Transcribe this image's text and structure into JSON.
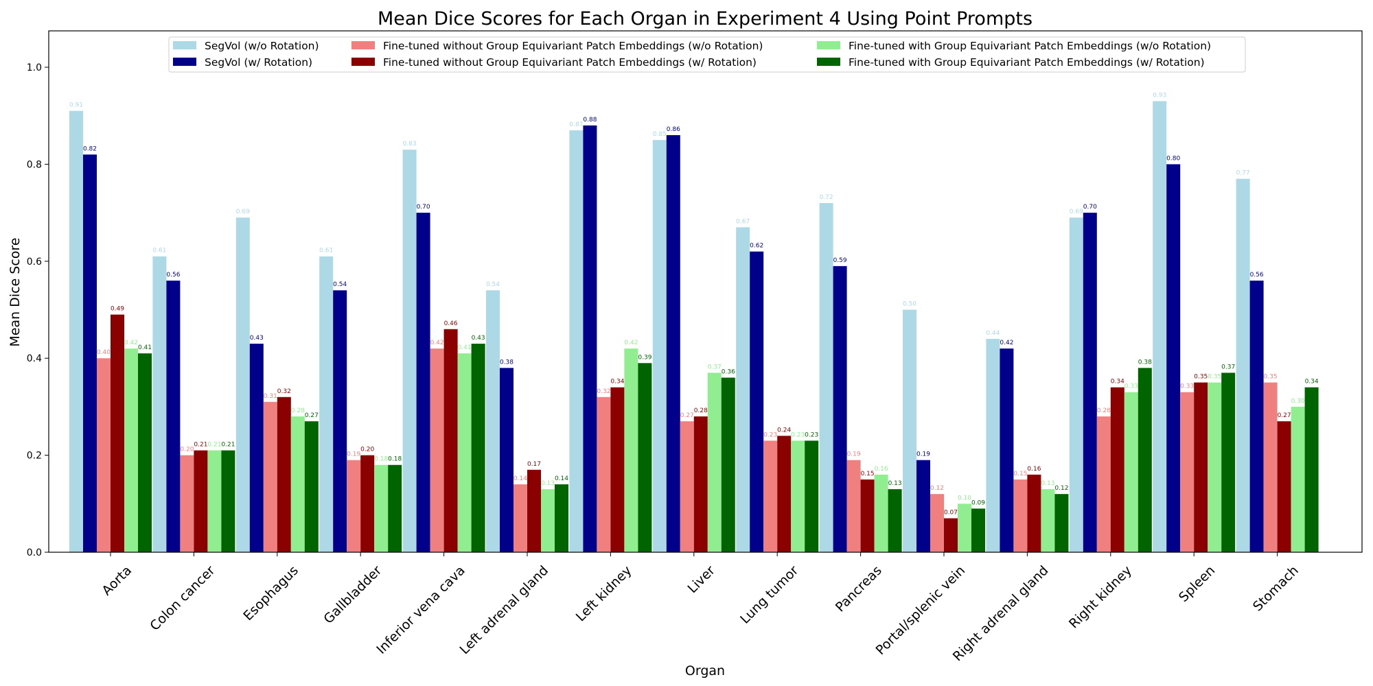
{
  "chart_data": {
    "type": "bar",
    "title": "Mean Dice Scores for Each Organ in Experiment 4 Using Point Prompts",
    "xlabel": "Organ",
    "ylabel": "Mean Dice Score",
    "ylim": [
      0,
      1.075
    ],
    "yticks": [
      0.0,
      0.2,
      0.4,
      0.6,
      0.8,
      1.0
    ],
    "ytick_labels": [
      "0.0",
      "0.2",
      "0.4",
      "0.6",
      "0.8",
      "1.0"
    ],
    "grid": false,
    "legend_position": "top-center",
    "categories": [
      "Aorta",
      "Colon cancer",
      "Esophagus",
      "Gallbladder",
      "Inferior vena cava",
      "Left adrenal gland",
      "Left kidney",
      "Liver",
      "Lung tumor",
      "Pancreas",
      "Portal/splenic vein",
      "Right adrenal gland",
      "Right kidney",
      "Spleen",
      "Stomach"
    ],
    "series": [
      {
        "name": "SegVol (w/o Rotation)",
        "color": "#add8e6",
        "values": [
          0.91,
          0.61,
          0.69,
          0.61,
          0.83,
          0.54,
          0.87,
          0.85,
          0.67,
          0.72,
          0.5,
          0.44,
          0.69,
          0.93,
          0.77
        ],
        "labels": [
          "0.91",
          "0.61",
          "0.69",
          "0.61",
          "0.83",
          "0.54",
          "0.87",
          "0.85",
          "0.67",
          "0.72",
          "0.50",
          "0.44",
          "0.69",
          "0.93",
          "0.77"
        ]
      },
      {
        "name": "SegVol (w/ Rotation)",
        "color": "#00008b",
        "values": [
          0.82,
          0.56,
          0.43,
          0.54,
          0.7,
          0.38,
          0.88,
          0.86,
          0.62,
          0.59,
          0.19,
          0.42,
          0.7,
          0.8,
          0.56
        ],
        "labels": [
          "0.82",
          "0.56",
          "0.43",
          "0.54",
          "0.70",
          "0.38",
          "0.88",
          "0.86",
          "0.62",
          "0.59",
          "0.19",
          "0.42",
          "0.70",
          "0.80",
          "0.56"
        ]
      },
      {
        "name": "Fine-tuned without Group Equivariant Patch Embeddings (w/o Rotation)",
        "color": "#f08080",
        "values": [
          0.4,
          0.2,
          0.31,
          0.19,
          0.42,
          0.14,
          0.32,
          0.27,
          0.23,
          0.19,
          0.12,
          0.15,
          0.28,
          0.33,
          0.35
        ],
        "labels": [
          "0.40",
          "0.20",
          "0.31",
          "0.19",
          "0.42",
          "0.14",
          "0.32",
          "0.27",
          "0.23",
          "0.19",
          "0.12",
          "0.15",
          "0.28",
          "0.33",
          "0.35"
        ]
      },
      {
        "name": "Fine-tuned without Group Equivariant Patch Embeddings (w/ Rotation)",
        "color": "#8b0000",
        "values": [
          0.49,
          0.21,
          0.32,
          0.2,
          0.46,
          0.17,
          0.34,
          0.28,
          0.24,
          0.15,
          0.07,
          0.16,
          0.34,
          0.35,
          0.27
        ],
        "labels": [
          "0.49",
          "0.21",
          "0.32",
          "0.20",
          "0.46",
          "0.17",
          "0.34",
          "0.28",
          "0.24",
          "0.15",
          "0.07",
          "0.16",
          "0.34",
          "0.35",
          "0.27"
        ]
      },
      {
        "name": "Fine-tuned with Group Equivariant Patch Embeddings (w/o Rotation)",
        "color": "#90ee90",
        "values": [
          0.42,
          0.21,
          0.28,
          0.18,
          0.41,
          0.13,
          0.42,
          0.37,
          0.23,
          0.16,
          0.1,
          0.13,
          0.33,
          0.35,
          0.3
        ],
        "labels": [
          "0.42",
          "0.21",
          "0.28",
          "0.18",
          "0.41",
          "0.13",
          "0.42",
          "0.37",
          "0.23",
          "0.16",
          "0.10",
          "0.13",
          "0.33",
          "0.35",
          "0.30"
        ]
      },
      {
        "name": "Fine-tuned with Group Equivariant Patch Embeddings (w/ Rotation)",
        "color": "#006400",
        "values": [
          0.41,
          0.21,
          0.27,
          0.18,
          0.43,
          0.14,
          0.39,
          0.36,
          0.23,
          0.13,
          0.09,
          0.12,
          0.38,
          0.37,
          0.34
        ],
        "labels": [
          "0.41",
          "0.21",
          "0.27",
          "0.18",
          "0.43",
          "0.14",
          "0.39",
          "0.36",
          "0.23",
          "0.13",
          "0.09",
          "0.12",
          "0.38",
          "0.37",
          "0.34"
        ]
      }
    ],
    "legend_columns": [
      [
        0,
        1
      ],
      [
        2,
        3
      ],
      [
        4,
        5
      ]
    ]
  }
}
